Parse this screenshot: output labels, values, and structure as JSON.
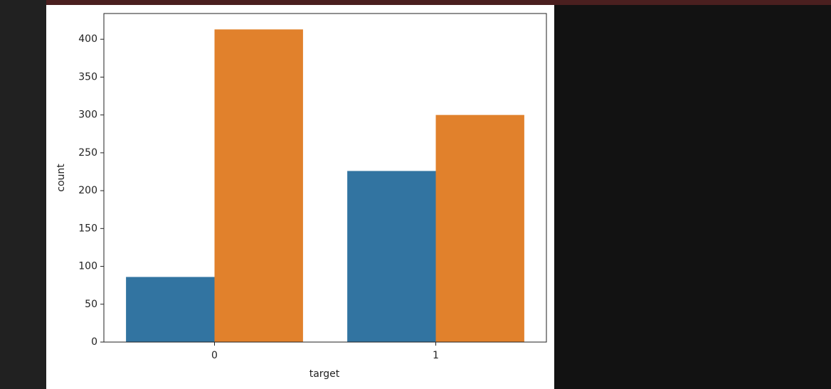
{
  "chart_data": {
    "type": "bar",
    "x_label": "target",
    "y_label": "count",
    "categories": [
      "0",
      "1"
    ],
    "series": [
      {
        "color": "#3274a1",
        "values": [
          86,
          226
        ]
      },
      {
        "color": "#e1812c",
        "values": [
          413,
          300
        ]
      }
    ],
    "ylim": [
      0,
      434
    ],
    "yticks": [
      0,
      50,
      100,
      150,
      200,
      250,
      300,
      350,
      400
    ],
    "grid": false
  }
}
